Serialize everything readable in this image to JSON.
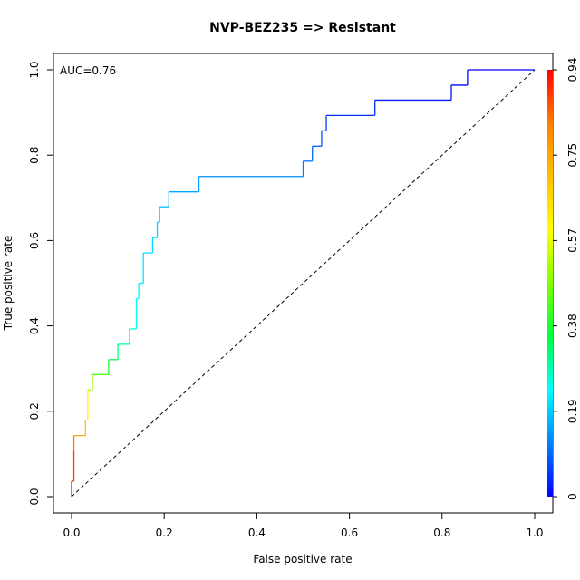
{
  "chart_data": {
    "type": "line",
    "title": "NVP-BEZ235 => Resistant",
    "xlabel": "False positive rate",
    "ylabel": "True positive rate",
    "xlim": [
      0,
      1
    ],
    "ylim": [
      0,
      1
    ],
    "xticks": [
      "0.0",
      "0.2",
      "0.4",
      "0.6",
      "0.8",
      "1.0"
    ],
    "yticks": [
      "0.0",
      "0.2",
      "0.4",
      "0.6",
      "0.8",
      "1.0"
    ],
    "annotation": "AUC=0.76",
    "grid": false,
    "colorbar": {
      "ticks": [
        "0",
        "0.19",
        "0.38",
        "0.57",
        "0.75",
        "0.94"
      ],
      "range": [
        0,
        0.94
      ],
      "colors": [
        "#0000ff",
        "#0080ff",
        "#00ffff",
        "#00ff40",
        "#80ff00",
        "#ffff00",
        "#ffc000",
        "#ff8000",
        "#ff0000"
      ]
    },
    "diagonal": {
      "x": [
        0,
        1
      ],
      "y": [
        0,
        1
      ],
      "style": "dashed"
    },
    "roc": [
      [
        0.0,
        0.0,
        0.94
      ],
      [
        0.0,
        0.036,
        0.92
      ],
      [
        0.005,
        0.036,
        0.9
      ],
      [
        0.005,
        0.107,
        0.88
      ],
      [
        0.005,
        0.143,
        0.77
      ],
      [
        0.03,
        0.143,
        0.74
      ],
      [
        0.03,
        0.179,
        0.67
      ],
      [
        0.035,
        0.179,
        0.63
      ],
      [
        0.035,
        0.25,
        0.57
      ],
      [
        0.045,
        0.25,
        0.52
      ],
      [
        0.045,
        0.286,
        0.46
      ],
      [
        0.08,
        0.286,
        0.4
      ],
      [
        0.08,
        0.321,
        0.36
      ],
      [
        0.1,
        0.321,
        0.33
      ],
      [
        0.1,
        0.357,
        0.3
      ],
      [
        0.125,
        0.357,
        0.28
      ],
      [
        0.125,
        0.393,
        0.26
      ],
      [
        0.14,
        0.393,
        0.25
      ],
      [
        0.14,
        0.464,
        0.24
      ],
      [
        0.145,
        0.464,
        0.23
      ],
      [
        0.145,
        0.5,
        0.22
      ],
      [
        0.155,
        0.5,
        0.215
      ],
      [
        0.155,
        0.571,
        0.21
      ],
      [
        0.175,
        0.571,
        0.205
      ],
      [
        0.175,
        0.607,
        0.2
      ],
      [
        0.185,
        0.607,
        0.195
      ],
      [
        0.185,
        0.643,
        0.19
      ],
      [
        0.19,
        0.643,
        0.185
      ],
      [
        0.19,
        0.679,
        0.18
      ],
      [
        0.21,
        0.679,
        0.17
      ],
      [
        0.21,
        0.714,
        0.16
      ],
      [
        0.275,
        0.714,
        0.15
      ],
      [
        0.275,
        0.75,
        0.14
      ],
      [
        0.5,
        0.75,
        0.12
      ],
      [
        0.5,
        0.786,
        0.11
      ],
      [
        0.52,
        0.786,
        0.1
      ],
      [
        0.52,
        0.821,
        0.09
      ],
      [
        0.54,
        0.821,
        0.08
      ],
      [
        0.54,
        0.857,
        0.07
      ],
      [
        0.55,
        0.857,
        0.06
      ],
      [
        0.55,
        0.893,
        0.05
      ],
      [
        0.655,
        0.893,
        0.04
      ],
      [
        0.655,
        0.929,
        0.03
      ],
      [
        0.82,
        0.929,
        0.02
      ],
      [
        0.82,
        0.964,
        0.01
      ],
      [
        0.855,
        0.964,
        0.005
      ],
      [
        0.855,
        1.0,
        0.002
      ],
      [
        1.0,
        1.0,
        0.0
      ]
    ]
  }
}
